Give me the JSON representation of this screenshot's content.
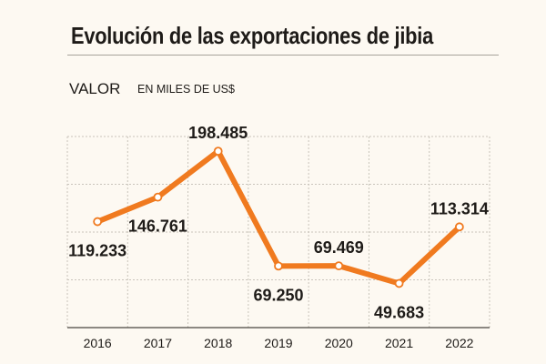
{
  "title": "Evolución de las exportaciones de jibia",
  "subtitle_label": "VALOR",
  "unit_label": "EN MILES DE US$",
  "colors": {
    "background": "#fdf9f2",
    "line": "#f07a1f",
    "text": "#1e1b18",
    "grid": "#c9c4bb",
    "axis": "#4a4640"
  },
  "chart_data": {
    "type": "line",
    "title": "Evolución de las exportaciones de jibia",
    "ylabel": "VALOR",
    "unit": "EN MILES DE US$",
    "x": [
      "2016",
      "2017",
      "2018",
      "2019",
      "2020",
      "2021",
      "2022"
    ],
    "series": [
      {
        "values": [
          119.233,
          146.761,
          198.485,
          69.25,
          69.469,
          49.683,
          113.314
        ],
        "labels": [
          "119.233",
          "146.761",
          "198.485",
          "69.250",
          "69.469",
          "49.683",
          "113.314"
        ]
      }
    ],
    "label_placement": [
      "below",
      "below",
      "above",
      "below",
      "above",
      "below",
      "above"
    ],
    "ylim": [
      0,
      215
    ],
    "grid": true,
    "legend": "none"
  }
}
